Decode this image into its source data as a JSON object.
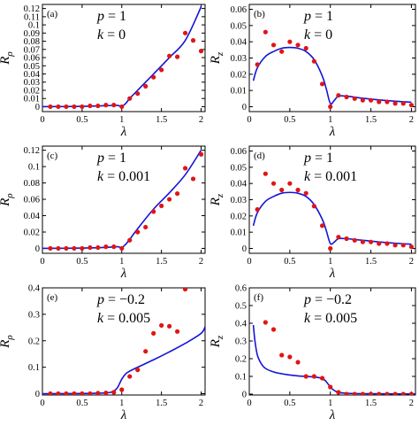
{
  "chart_data": [
    {
      "type": "scatter",
      "panel_label": "(a)",
      "xlabel": "λ",
      "ylabel_main": "R",
      "ylabel_sub": "ρ",
      "annotation": [
        "p = 1",
        "k = 0"
      ],
      "xlim": [
        0,
        2.05
      ],
      "ylim": [
        -0.006,
        0.125
      ],
      "xticks": [
        0,
        0.5,
        1,
        1.5,
        2
      ],
      "xtick_labels": [
        "0",
        "0.5",
        "1",
        "1.5",
        "2"
      ],
      "yticks": [
        0,
        0.01,
        0.02,
        0.03,
        0.04,
        0.05,
        0.06,
        0.07,
        0.08,
        0.09,
        0.1,
        0.11,
        0.12
      ],
      "ytick_labels": [
        "0",
        "0.01",
        "0.02",
        "0.03",
        "0.04",
        "0.05",
        "0.06",
        "0.07",
        "0.08",
        "0.09",
        "0.1",
        "0.11",
        "0.12"
      ],
      "series": [
        {
          "kind": "curve",
          "color": "#1414d8",
          "x": [
            0,
            0.3,
            0.6,
            0.8,
            0.9,
            0.95,
            1.0,
            1.05,
            1.1,
            1.2,
            1.4,
            1.6,
            1.8,
            2.0
          ],
          "y": [
            0,
            0.0002,
            0.0006,
            0.0012,
            0.0016,
            0.0015,
            0.0005,
            0.004,
            0.01,
            0.02,
            0.04,
            0.06,
            0.081,
            0.122
          ]
        },
        {
          "kind": "points",
          "color": "#e01515",
          "x": [
            0.1,
            0.2,
            0.3,
            0.4,
            0.5,
            0.6,
            0.7,
            0.8,
            0.9,
            1.0,
            1.1,
            1.2,
            1.3,
            1.4,
            1.5,
            1.6,
            1.7,
            1.8,
            1.9,
            2.0
          ],
          "y": [
            0,
            0,
            0,
            0,
            0,
            0.001,
            0.001,
            0.002,
            0.002,
            0,
            0.01,
            0.016,
            0.025,
            0.036,
            0.045,
            0.062,
            0.061,
            0.09,
            0.081,
            0.068
          ]
        }
      ]
    },
    {
      "type": "scatter",
      "panel_label": "(b)",
      "xlabel": "λ",
      "ylabel_main": "R",
      "ylabel_sub": "z",
      "annotation": [
        "p = 1",
        "k = 0"
      ],
      "xlim": [
        0,
        2.05
      ],
      "ylim": [
        -0.003,
        0.063
      ],
      "xticks": [
        0,
        0.5,
        1,
        1.5,
        2
      ],
      "xtick_labels": [
        "0",
        "0.5",
        "1",
        "1.5",
        "2"
      ],
      "yticks": [
        0,
        0.01,
        0.02,
        0.03,
        0.04,
        0.05,
        0.06
      ],
      "ytick_labels": [
        "0",
        "0.01",
        "0.02",
        "0.03",
        "0.04",
        "0.05",
        "0.06"
      ],
      "series": [
        {
          "kind": "curve",
          "color": "#1414d8",
          "x": [
            0.05,
            0.1,
            0.2,
            0.3,
            0.4,
            0.5,
            0.6,
            0.7,
            0.8,
            0.9,
            0.95,
            1.0,
            1.05,
            1.1,
            1.2,
            1.4,
            1.6,
            1.8,
            2.0
          ],
          "y": [
            0.016,
            0.024,
            0.031,
            0.034,
            0.036,
            0.0365,
            0.036,
            0.034,
            0.029,
            0.019,
            0.011,
            0.002,
            0.004,
            0.0065,
            0.0065,
            0.0052,
            0.0042,
            0.0034,
            0.0028
          ]
        },
        {
          "kind": "points",
          "color": "#e01515",
          "x": [
            0.1,
            0.2,
            0.3,
            0.4,
            0.5,
            0.6,
            0.7,
            0.8,
            0.9,
            1.0,
            1.1,
            1.2,
            1.3,
            1.4,
            1.5,
            1.6,
            1.7,
            1.8,
            1.9,
            2.0
          ],
          "y": [
            0.026,
            0.046,
            0.038,
            0.034,
            0.04,
            0.038,
            0.036,
            0.028,
            0.014,
            0,
            0.007,
            0.006,
            0.005,
            0.004,
            0.004,
            0.003,
            0.003,
            0.002,
            0.002,
            0.001
          ]
        }
      ]
    },
    {
      "type": "scatter",
      "panel_label": "(c)",
      "xlabel": "λ",
      "ylabel_main": "R",
      "ylabel_sub": "ρ",
      "annotation": [
        "p = 1",
        "k = 0.001"
      ],
      "xlim": [
        0,
        2.05
      ],
      "ylim": [
        -0.006,
        0.125
      ],
      "xticks": [
        0,
        0.5,
        1,
        1.5,
        2
      ],
      "xtick_labels": [
        "0",
        "0.5",
        "1",
        "1.5",
        "2"
      ],
      "yticks": [
        0,
        0.02,
        0.04,
        0.06,
        0.08,
        0.1,
        0.12
      ],
      "ytick_labels": [
        "0",
        "0.02",
        "0.04",
        "0.06",
        "0.08",
        "0.1",
        "0.12"
      ],
      "series": [
        {
          "kind": "curve",
          "color": "#1414d8",
          "x": [
            0,
            0.3,
            0.6,
            0.8,
            0.9,
            0.95,
            1.0,
            1.05,
            1.1,
            1.2,
            1.4,
            1.6,
            1.8,
            2.0
          ],
          "y": [
            0,
            0.0002,
            0.0006,
            0.0012,
            0.0018,
            0.002,
            0.0012,
            0.005,
            0.011,
            0.024,
            0.048,
            0.068,
            0.09,
            0.12
          ]
        },
        {
          "kind": "points",
          "color": "#e01515",
          "x": [
            0.1,
            0.2,
            0.3,
            0.4,
            0.5,
            0.6,
            0.7,
            0.8,
            0.9,
            1.0,
            1.1,
            1.2,
            1.3,
            1.4,
            1.5,
            1.6,
            1.7,
            1.8,
            1.9,
            2.0
          ],
          "y": [
            0,
            0,
            0,
            0,
            0,
            0.001,
            0.001,
            0.002,
            0.002,
            0,
            0.01,
            0.02,
            0.026,
            0.045,
            0.052,
            0.06,
            0.067,
            0.098,
            0.085,
            0.115
          ]
        }
      ]
    },
    {
      "type": "scatter",
      "panel_label": "(d)",
      "xlabel": "λ",
      "ylabel_main": "R",
      "ylabel_sub": "z",
      "annotation": [
        "p = 1",
        "k = 0.001"
      ],
      "xlim": [
        0,
        2.05
      ],
      "ylim": [
        -0.003,
        0.063
      ],
      "xticks": [
        0,
        0.5,
        1,
        1.5,
        2
      ],
      "xtick_labels": [
        "0",
        "0.5",
        "1",
        "1.5",
        "2"
      ],
      "yticks": [
        0,
        0.01,
        0.02,
        0.03,
        0.04,
        0.05,
        0.06
      ],
      "ytick_labels": [
        "0",
        "0.01",
        "0.02",
        "0.03",
        "0.04",
        "0.05",
        "0.06"
      ],
      "series": [
        {
          "kind": "curve",
          "color": "#1414d8",
          "x": [
            0.05,
            0.1,
            0.2,
            0.3,
            0.4,
            0.5,
            0.6,
            0.7,
            0.8,
            0.9,
            0.95,
            1.0,
            1.05,
            1.1,
            1.2,
            1.4,
            1.6,
            1.8,
            2.0
          ],
          "y": [
            0.014,
            0.022,
            0.029,
            0.032,
            0.034,
            0.0345,
            0.034,
            0.032,
            0.027,
            0.018,
            0.011,
            0.003,
            0.004,
            0.006,
            0.006,
            0.005,
            0.004,
            0.0032,
            0.0026
          ]
        },
        {
          "kind": "points",
          "color": "#e01515",
          "x": [
            0.1,
            0.2,
            0.3,
            0.4,
            0.5,
            0.6,
            0.7,
            0.8,
            0.9,
            1.0,
            1.1,
            1.2,
            1.3,
            1.4,
            1.5,
            1.6,
            1.7,
            1.8,
            1.9,
            2.0
          ],
          "y": [
            0.024,
            0.046,
            0.04,
            0.036,
            0.04,
            0.036,
            0.034,
            0.026,
            0.014,
            0,
            0.007,
            0.006,
            0.005,
            0.004,
            0.004,
            0.003,
            0.003,
            0.002,
            0.002,
            0.001
          ]
        }
      ]
    },
    {
      "type": "scatter",
      "panel_label": "(e)",
      "xlabel": "λ",
      "ylabel_main": "R",
      "ylabel_sub": "ρ",
      "annotation": [
        "p = −0.2",
        "k = 0.005"
      ],
      "xlim": [
        0,
        2.05
      ],
      "ylim": [
        -0.005,
        0.4
      ],
      "xticks": [
        0,
        0.5,
        1,
        1.5,
        2
      ],
      "xtick_labels": [
        "0",
        "0.5",
        "1",
        "1.5",
        "2"
      ],
      "yticks": [
        0,
        0.1,
        0.2,
        0.3,
        0.4
      ],
      "ytick_labels": [
        "0",
        "0.1",
        "0.2",
        "0.3",
        "0.4"
      ],
      "series": [
        {
          "kind": "curve",
          "color": "#1414d8",
          "x": [
            0,
            0.5,
            0.8,
            0.9,
            0.95,
            1.0,
            1.05,
            1.1,
            1.2,
            1.4,
            1.6,
            1.8,
            2.0,
            2.05
          ],
          "y": [
            0,
            0.0005,
            0.003,
            0.01,
            0.025,
            0.055,
            0.075,
            0.085,
            0.1,
            0.128,
            0.158,
            0.19,
            0.228,
            0.253
          ]
        },
        {
          "kind": "points",
          "color": "#e01515",
          "x": [
            0.1,
            0.2,
            0.3,
            0.4,
            0.5,
            0.6,
            0.7,
            0.8,
            0.9,
            1.0,
            1.1,
            1.2,
            1.3,
            1.4,
            1.5,
            1.6,
            1.7,
            1.8
          ],
          "y": [
            0,
            0,
            0,
            0,
            0,
            0,
            0.002,
            0.003,
            0.005,
            0.015,
            0.065,
            0.09,
            0.16,
            0.228,
            0.258,
            0.255,
            0.235,
            0.395
          ]
        }
      ]
    },
    {
      "type": "scatter",
      "panel_label": "(f)",
      "xlabel": "λ",
      "ylabel_main": "R",
      "ylabel_sub": "z",
      "annotation": [
        "p = −0.2",
        "k = 0.005"
      ],
      "xlim": [
        0,
        2.05
      ],
      "ylim": [
        -0.005,
        0.6
      ],
      "xticks": [
        0,
        0.5,
        1,
        1.5,
        2
      ],
      "xtick_labels": [
        "0",
        "0.5",
        "1",
        "1.5",
        "2"
      ],
      "yticks": [
        0,
        0.1,
        0.2,
        0.3,
        0.4,
        0.5,
        0.6
      ],
      "ytick_labels": [
        "0",
        "0.1",
        "0.2",
        "0.3",
        "0.4",
        "0.5",
        "0.6"
      ],
      "series": [
        {
          "kind": "curve",
          "color": "#1414d8",
          "x": [
            0.05,
            0.07,
            0.1,
            0.15,
            0.2,
            0.3,
            0.4,
            0.5,
            0.6,
            0.7,
            0.8,
            0.9,
            0.95,
            1.0,
            1.05,
            1.1,
            1.2,
            1.5,
            2.0,
            2.05
          ],
          "y": [
            0.39,
            0.3,
            0.22,
            0.17,
            0.145,
            0.125,
            0.115,
            0.108,
            0.103,
            0.1,
            0.097,
            0.088,
            0.07,
            0.04,
            0.02,
            0.01,
            0.005,
            0.002,
            0.001,
            0.001
          ]
        },
        {
          "kind": "points",
          "color": "#e01515",
          "x": [
            0.2,
            0.3,
            0.4,
            0.5,
            0.6,
            0.7,
            0.8,
            0.9,
            1.0,
            1.1,
            1.2,
            1.3,
            1.4,
            1.5,
            1.6,
            1.7,
            1.8,
            1.9,
            2.0
          ],
          "y": [
            0.405,
            0.365,
            0.22,
            0.21,
            0.18,
            0.1,
            0.1,
            0.09,
            0.04,
            0.01,
            0,
            0,
            0,
            0,
            0,
            0,
            0,
            0,
            0
          ]
        }
      ]
    }
  ]
}
